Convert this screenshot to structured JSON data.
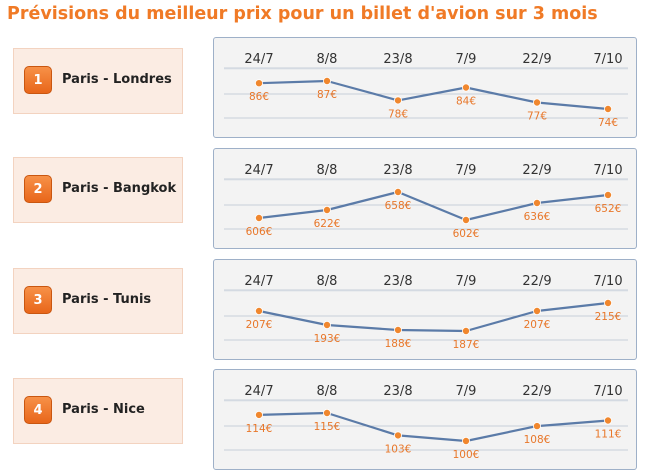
{
  "page": {
    "title": "Prévisions du meilleur prix pour un billet d'avion sur 3 mois"
  },
  "colors": {
    "title": "#f07a26",
    "line": "#5b7ba8",
    "point": "#f0872e",
    "value_text": "#e8772a",
    "card_bg": "#fbece3"
  },
  "chart_data": [
    {
      "type": "line",
      "rank": "1",
      "route": "Paris - Londres",
      "categories": [
        "24/7",
        "8/8",
        "23/8",
        "7/9",
        "22/9",
        "7/10"
      ],
      "values": [
        86,
        87,
        78,
        84,
        77,
        74
      ],
      "value_labels": [
        "86€",
        "87€",
        "78€",
        "84€",
        "77€",
        "74€"
      ]
    },
    {
      "type": "line",
      "rank": "2",
      "route": "Paris - Bangkok",
      "categories": [
        "24/7",
        "8/8",
        "23/8",
        "7/9",
        "22/9",
        "7/10"
      ],
      "values": [
        606,
        622,
        658,
        602,
        636,
        652
      ],
      "value_labels": [
        "606€",
        "622€",
        "658€",
        "602€",
        "636€",
        "652€"
      ]
    },
    {
      "type": "line",
      "rank": "3",
      "route": "Paris - Tunis",
      "categories": [
        "24/7",
        "8/8",
        "23/8",
        "7/9",
        "22/9",
        "7/10"
      ],
      "values": [
        207,
        193,
        188,
        187,
        207,
        215
      ],
      "value_labels": [
        "207€",
        "193€",
        "188€",
        "187€",
        "207€",
        "215€"
      ]
    },
    {
      "type": "line",
      "rank": "4",
      "route": "Paris - Nice",
      "categories": [
        "24/7",
        "8/8",
        "23/8",
        "7/9",
        "22/9",
        "7/10"
      ],
      "values": [
        114,
        115,
        103,
        100,
        108,
        111
      ],
      "value_labels": [
        "114€",
        "115€",
        "103€",
        "100€",
        "108€",
        "111€"
      ]
    }
  ]
}
